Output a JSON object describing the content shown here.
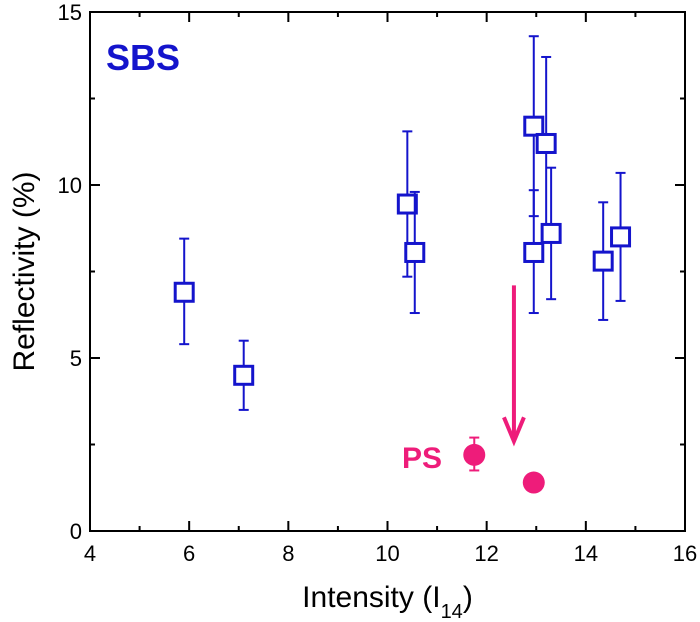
{
  "chart_data": {
    "type": "scatter",
    "title": "",
    "xlabel": "Intensity (I",
    "xlabel_sub": "14",
    "xlabel_close": ")",
    "ylabel": "Reflectivity (%)",
    "xlim": [
      4,
      16
    ],
    "ylim": [
      0,
      15
    ],
    "xticks": [
      "4",
      "6",
      "8",
      "10",
      "12",
      "14",
      "16"
    ],
    "yticks": [
      "0",
      "5",
      "10",
      "15"
    ],
    "grid": false,
    "colors": {
      "sbs": "#1414cc",
      "ps": "#ee1c7a",
      "axis": "#000000"
    },
    "series": [
      {
        "name": "SBS",
        "marker": "open-square",
        "points": [
          {
            "x": 5.9,
            "y": 6.9,
            "err_low": 5.4,
            "err_high": 8.45
          },
          {
            "x": 7.1,
            "y": 4.5,
            "err_low": 3.5,
            "err_high": 5.5
          },
          {
            "x": 10.4,
            "y": 9.45,
            "err_low": 7.35,
            "err_high": 11.55
          },
          {
            "x": 10.55,
            "y": 8.05,
            "err_low": 6.3,
            "err_high": 9.8
          },
          {
            "x": 12.95,
            "y": 11.7,
            "err_low": 9.1,
            "err_high": 14.3
          },
          {
            "x": 12.95,
            "y": 8.05,
            "err_low": 6.3,
            "err_high": 9.85
          },
          {
            "x": 13.2,
            "y": 11.2,
            "err_low": 8.7,
            "err_high": 13.7
          },
          {
            "x": 13.3,
            "y": 8.6,
            "err_low": 6.7,
            "err_high": 10.5
          },
          {
            "x": 14.35,
            "y": 7.8,
            "err_low": 6.1,
            "err_high": 9.5
          },
          {
            "x": 14.7,
            "y": 8.5,
            "err_low": 6.65,
            "err_high": 10.35
          }
        ]
      },
      {
        "name": "PS",
        "marker": "filled-circle",
        "points": [
          {
            "x": 11.75,
            "y": 2.2,
            "err_low": 1.75,
            "err_high": 2.7
          },
          {
            "x": 12.95,
            "y": 1.4
          }
        ]
      }
    ],
    "annotations": [
      {
        "type": "arrow",
        "x_start": 12.55,
        "y_start": 7.1,
        "x_end": 12.55,
        "y_end": 2.65,
        "color": "#ee1c7a"
      }
    ]
  }
}
